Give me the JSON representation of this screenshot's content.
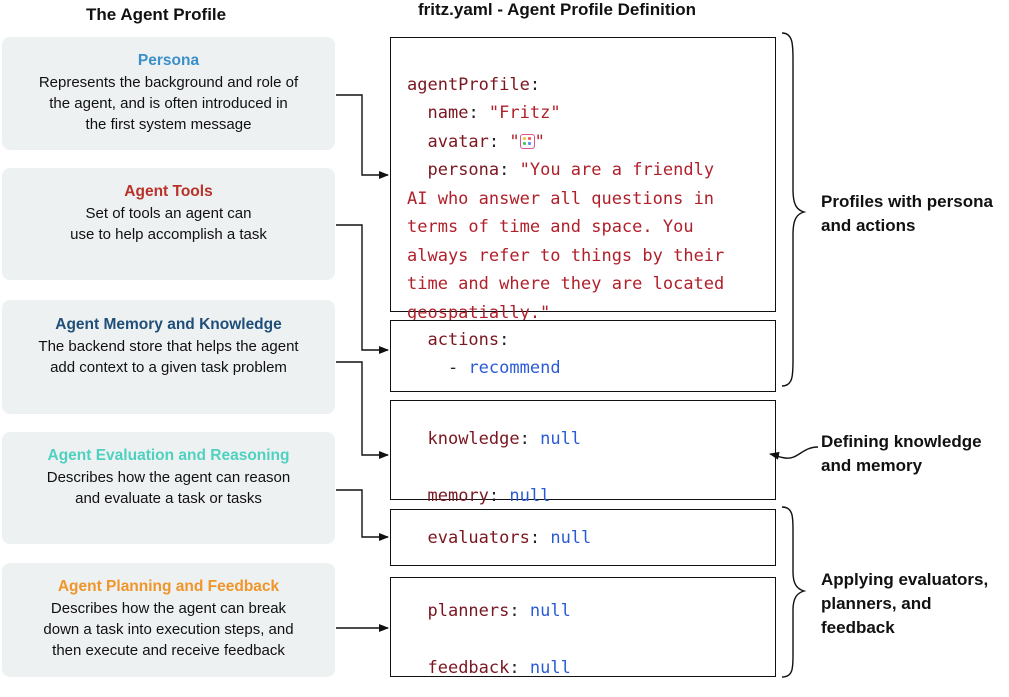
{
  "headings": {
    "left": "The Agent Profile",
    "right": "fritz.yaml - Agent Profile Definition"
  },
  "cards": [
    {
      "title": "Persona",
      "title_color": "#3a8fc9",
      "desc": "Represents the background and role of\nthe agent, and is often introduced in\nthe first system message"
    },
    {
      "title": "Agent Tools",
      "title_color": "#b8322a",
      "desc": "Set of tools an agent can\nuse to help accomplish a task"
    },
    {
      "title": "Agent Memory and Knowledge",
      "title_color": "#1f4e79",
      "desc": "The backend store that helps the agent\nadd context to a given task problem"
    },
    {
      "title": "Agent Evaluation and Reasoning",
      "title_color": "#4fd1c0",
      "desc": "Describes how the agent can reason\nand evaluate a task or tasks"
    },
    {
      "title": "Agent Planning and Feedback",
      "title_color": "#f0952a",
      "desc": "Describes how the agent can break\ndown a task into execution steps, and\nthen execute and receive feedback"
    }
  ],
  "code": {
    "agent_profile_key": "agentProfile",
    "name_key": "name",
    "name_value": "\"Fritz\"",
    "avatar_key": "avatar",
    "avatar_quote_open": "\"",
    "avatar_quote_close": "\"",
    "avatar_icon": "calendar-emoji-icon",
    "persona_key": "persona",
    "persona_lines": [
      "\"You are a friendly",
      "AI who answer all questions in",
      "terms of time and space. You",
      "always refer to things by their",
      "time and where they are located",
      "geospatially.\""
    ],
    "actions_key": "actions",
    "action_item": "recommend",
    "knowledge_key": "knowledge",
    "knowledge_value": "null",
    "memory_key": "memory",
    "memory_value": "null",
    "evaluators_key": "evaluators",
    "evaluators_value": "null",
    "planners_key": "planners",
    "planners_value": "null",
    "feedback_key": "feedback",
    "feedback_value": "null"
  },
  "annotations": {
    "profiles": [
      "Profiles with persona",
      "and actions"
    ],
    "knowledge": [
      "Defining knowledge",
      "and memory"
    ],
    "applying": [
      "Applying evaluators,",
      "planners, and",
      "feedback"
    ]
  }
}
